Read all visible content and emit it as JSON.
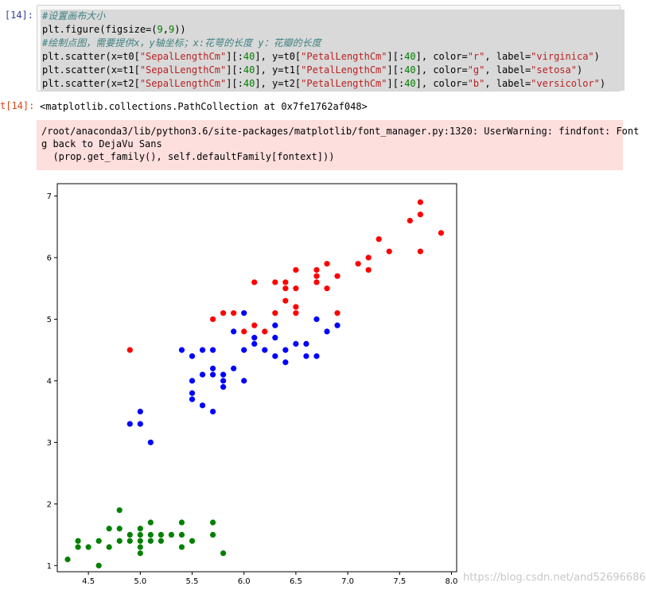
{
  "cell": {
    "in_prompt": "[14]:",
    "out_prompt": "t[14]:",
    "code": {
      "line1": "#设置画布大小",
      "line2_a": "plt.figure(figsize=(",
      "line2_b": "9",
      "line2_c": ",",
      "line2_d": "9",
      "line2_e": "))",
      "line3": "#绘制点图，需要提供x，y轴坐标；x:花萼的长度 y：花瓣的长度",
      "scatter_lines": [
        {
          "p1": "plt.scatter(x=t0[",
          "s1": "\"SepalLengthCm\"",
          "p2": "][:",
          "n1": "40",
          "p3": "], y=t0[",
          "s2": "\"PetalLengthCm\"",
          "p4": "][:",
          "n2": "40",
          "p5": "], color=",
          "s3": "\"r\"",
          "p6": ", label=",
          "s4": "\"virginica\"",
          "p7": ")"
        },
        {
          "p1": "plt.scatter(x=t1[",
          "s1": "\"SepalLengthCm\"",
          "p2": "][:",
          "n1": "40",
          "p3": "], y=t1[",
          "s2": "\"PetalLengthCm\"",
          "p4": "][:",
          "n2": "40",
          "p5": "], color=",
          "s3": "\"g\"",
          "p6": ", label=",
          "s4": "\"setosa\"",
          "p7": ")"
        },
        {
          "p1": "plt.scatter(x=t2[",
          "s1": "\"SepalLengthCm\"",
          "p2": "][:",
          "n1": "40",
          "p3": "], y=t2[",
          "s2": "\"PetalLengthCm\"",
          "p4": "][:",
          "n2": "40",
          "p5": "], color=",
          "s3": "\"b\"",
          "p6": ", label=",
          "s4": "\"versicolor\"",
          "p7": ")"
        }
      ]
    },
    "output_repr": "<matplotlib.collections.PathCollection at 0x7fe1762af048>",
    "warning_lines": [
      "/root/anaconda3/lib/python3.6/site-packages/matplotlib/font_manager.py:1320: UserWarning: findfont: Font",
      "g back to DejaVu Sans",
      "  (prop.get_family(), self.defaultFamily[fontext]))"
    ]
  },
  "watermark": "https://blog.csdn.net/and52696686",
  "chart_data": {
    "type": "scatter",
    "title": "",
    "xlabel": "",
    "ylabel": "",
    "xlim": [
      4.2,
      8.05
    ],
    "ylim": [
      0.9,
      7.2
    ],
    "xticks": [
      "4.5",
      "5.0",
      "5.5",
      "6.0",
      "6.5",
      "7.0",
      "7.5",
      "8.0"
    ],
    "yticks": [
      "1",
      "2",
      "3",
      "4",
      "5",
      "6",
      "7"
    ],
    "grid": false,
    "legend": "none",
    "series": [
      {
        "color": "#ff0000",
        "points": [
          [
            4.9,
            4.5
          ],
          [
            5.7,
            5.0
          ],
          [
            5.8,
            5.1
          ],
          [
            5.9,
            5.1
          ],
          [
            6.0,
            4.8
          ],
          [
            6.1,
            4.9
          ],
          [
            6.1,
            5.6
          ],
          [
            6.2,
            4.8
          ],
          [
            6.3,
            5.6
          ],
          [
            6.3,
            5.1
          ],
          [
            6.4,
            5.6
          ],
          [
            6.4,
            5.5
          ],
          [
            6.4,
            5.3
          ],
          [
            6.5,
            5.8
          ],
          [
            6.5,
            5.5
          ],
          [
            6.5,
            5.1
          ],
          [
            6.5,
            5.2
          ],
          [
            6.7,
            5.8
          ],
          [
            6.7,
            5.7
          ],
          [
            6.7,
            5.6
          ],
          [
            6.8,
            5.9
          ],
          [
            6.8,
            5.5
          ],
          [
            6.9,
            5.7
          ],
          [
            6.9,
            5.1
          ],
          [
            7.1,
            5.9
          ],
          [
            7.2,
            6.0
          ],
          [
            7.2,
            5.8
          ],
          [
            7.3,
            6.3
          ],
          [
            7.4,
            6.1
          ],
          [
            7.6,
            6.6
          ],
          [
            7.7,
            6.9
          ],
          [
            7.7,
            6.7
          ],
          [
            7.7,
            6.1
          ],
          [
            7.9,
            6.4
          ]
        ]
      },
      {
        "color": "#008000",
        "points": [
          [
            4.3,
            1.1
          ],
          [
            4.4,
            1.4
          ],
          [
            4.4,
            1.3
          ],
          [
            4.5,
            1.3
          ],
          [
            4.6,
            1.4
          ],
          [
            4.6,
            1.0
          ],
          [
            4.7,
            1.6
          ],
          [
            4.7,
            1.3
          ],
          [
            4.8,
            1.9
          ],
          [
            4.8,
            1.6
          ],
          [
            4.8,
            1.4
          ],
          [
            4.9,
            1.5
          ],
          [
            4.9,
            1.4
          ],
          [
            5.0,
            1.6
          ],
          [
            5.0,
            1.5
          ],
          [
            5.0,
            1.4
          ],
          [
            5.0,
            1.3
          ],
          [
            5.0,
            1.2
          ],
          [
            5.1,
            1.7
          ],
          [
            5.1,
            1.5
          ],
          [
            5.1,
            1.4
          ],
          [
            5.2,
            1.5
          ],
          [
            5.2,
            1.4
          ],
          [
            5.3,
            1.5
          ],
          [
            5.4,
            1.7
          ],
          [
            5.4,
            1.5
          ],
          [
            5.4,
            1.3
          ],
          [
            5.5,
            1.4
          ],
          [
            5.7,
            1.7
          ],
          [
            5.7,
            1.5
          ],
          [
            5.8,
            1.2
          ]
        ]
      },
      {
        "color": "#0000ff",
        "points": [
          [
            4.9,
            3.3
          ],
          [
            5.0,
            3.5
          ],
          [
            5.0,
            3.3
          ],
          [
            5.1,
            3.0
          ],
          [
            5.4,
            4.5
          ],
          [
            5.5,
            4.4
          ],
          [
            5.5,
            4.0
          ],
          [
            5.5,
            3.8
          ],
          [
            5.5,
            3.7
          ],
          [
            5.6,
            4.5
          ],
          [
            5.6,
            4.1
          ],
          [
            5.6,
            3.6
          ],
          [
            5.7,
            4.5
          ],
          [
            5.7,
            4.2
          ],
          [
            5.7,
            4.1
          ],
          [
            5.7,
            3.5
          ],
          [
            5.8,
            4.1
          ],
          [
            5.8,
            4.0
          ],
          [
            5.8,
            3.9
          ],
          [
            5.9,
            4.8
          ],
          [
            5.9,
            4.2
          ],
          [
            6.0,
            5.1
          ],
          [
            6.0,
            4.5
          ],
          [
            6.0,
            4.0
          ],
          [
            6.1,
            4.7
          ],
          [
            6.1,
            4.6
          ],
          [
            6.2,
            4.5
          ],
          [
            6.3,
            4.9
          ],
          [
            6.3,
            4.7
          ],
          [
            6.3,
            4.4
          ],
          [
            6.4,
            4.5
          ],
          [
            6.4,
            4.3
          ],
          [
            6.5,
            4.6
          ],
          [
            6.6,
            4.6
          ],
          [
            6.6,
            4.4
          ],
          [
            6.7,
            5.0
          ],
          [
            6.7,
            4.4
          ],
          [
            6.8,
            4.8
          ],
          [
            6.9,
            4.9
          ]
        ]
      }
    ]
  }
}
